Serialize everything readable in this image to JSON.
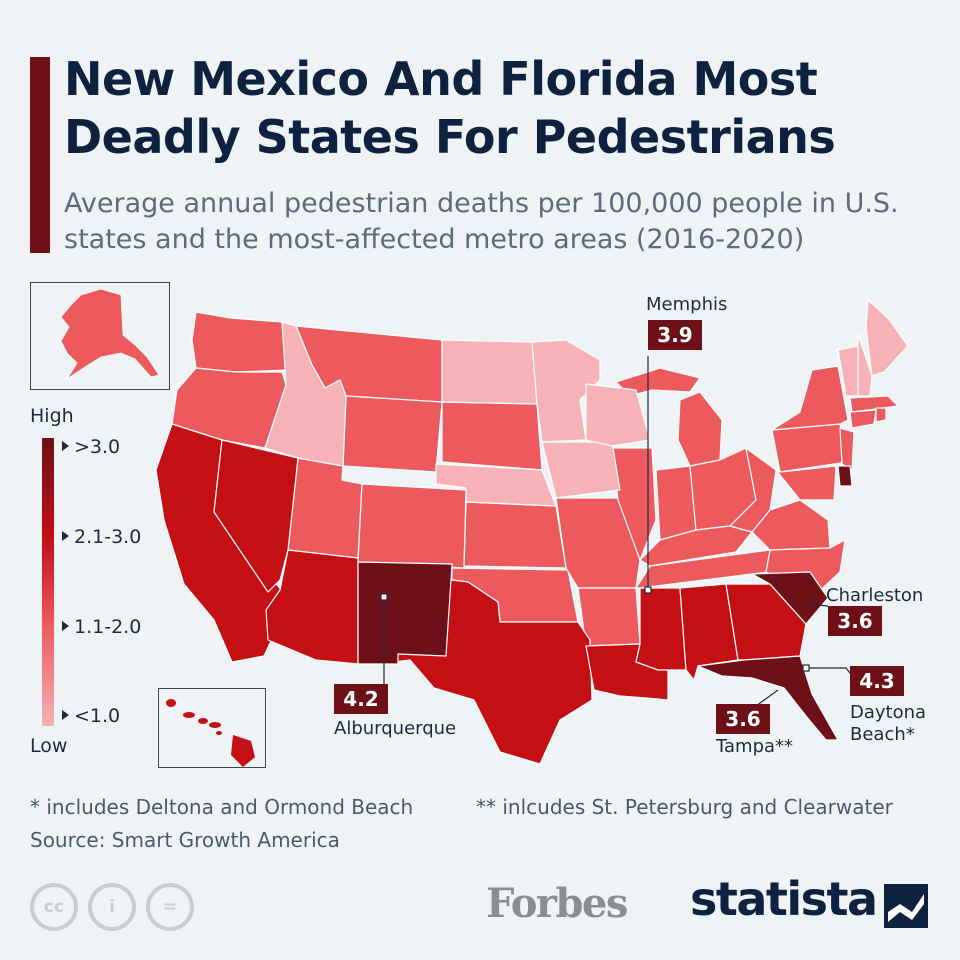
{
  "title": "New Mexico And Florida Most Deadly States For Pedestrians",
  "subtitle": "Average annual pedestrian deaths per 100,000 people in U.S. states and the most-affected metro areas (2016-2020)",
  "legend": {
    "high_label": "High",
    "low_label": "Low",
    "bins": [
      ">3.0",
      "2.1-3.0",
      "1.1-2.0",
      "<1.0"
    ],
    "colors": [
      "#6e1018",
      "#c40f14",
      "#ec5a5e",
      "#f6b2b6"
    ]
  },
  "state_categories": {
    ">3.0": [
      "New Mexico",
      "South Carolina",
      "Florida",
      "Delaware"
    ],
    "2.1-3.0": [
      "California",
      "Nevada",
      "Arizona",
      "Texas",
      "Louisiana",
      "Mississippi",
      "Alabama",
      "Georgia",
      "Hawaii"
    ],
    "1.1-2.0": [
      "Washington",
      "Oregon",
      "Montana",
      "Wyoming",
      "Utah",
      "Colorado",
      "South Dakota",
      "Kansas",
      "Oklahoma",
      "Missouri",
      "Arkansas",
      "Illinois",
      "Michigan",
      "Indiana",
      "Ohio",
      "Kentucky",
      "Tennessee",
      "West Virginia",
      "Virginia",
      "North Carolina",
      "Pennsylvania",
      "New York",
      "New Jersey",
      "Maryland",
      "Connecticut",
      "Massachusetts",
      "Rhode Island",
      "Alaska"
    ],
    "<1.0": [
      "Idaho",
      "North Dakota",
      "Minnesota",
      "Nebraska",
      "Iowa",
      "Wisconsin",
      "Maine",
      "New Hampshire",
      "Vermont"
    ]
  },
  "metros": [
    {
      "name": "Memphis",
      "value": "3.9"
    },
    {
      "name": "Charleston",
      "value": "3.6"
    },
    {
      "name": "Daytona Beach*",
      "value": "4.3"
    },
    {
      "name": "Tampa**",
      "value": "3.6"
    },
    {
      "name": "Alburquerque",
      "value": "4.2"
    }
  ],
  "footnotes": {
    "one": "* includes Deltona and Ormond Beach",
    "two": "** inlcudes St. Petersburg and Clearwater",
    "source": "Source: Smart Growth America"
  },
  "license_icons": [
    "cc-icon",
    "attribution-icon",
    "no-derivatives-icon"
  ],
  "license_text": {
    "cc": "cc",
    "by": "i",
    "nd": "="
  },
  "brands": {
    "forbes": "Forbes",
    "statista": "statista"
  },
  "colors": {
    "title": "#0e2240",
    "accent": "#6e1018",
    "background": "#f0f3f6"
  }
}
